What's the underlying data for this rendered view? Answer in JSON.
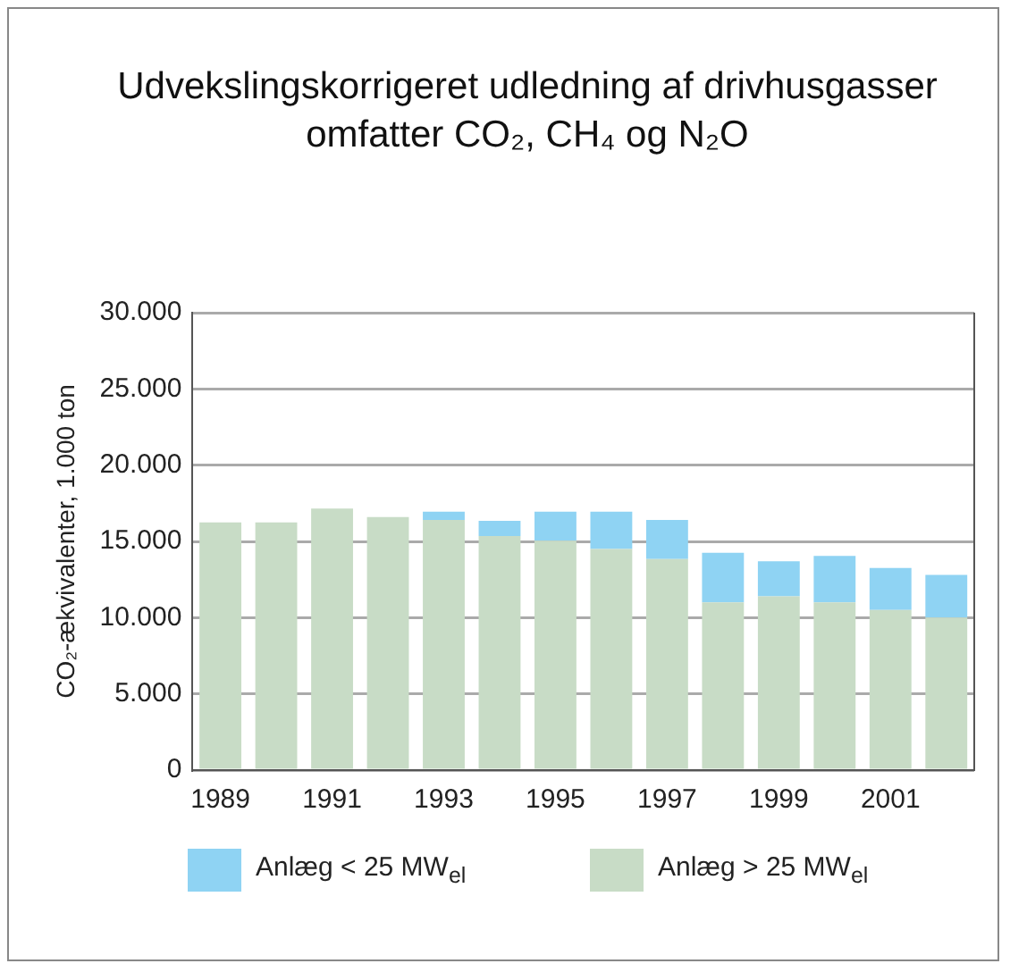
{
  "chart_data": {
    "type": "bar",
    "title": "Udvekslingskorrigeret udledning af drivhusgasser omfatter CO₂, CH₄ og N₂O",
    "ylabel": "CO₂-ækvivalenter, 1.000 ton",
    "categories": [
      "1989",
      null,
      "1991",
      null,
      "1993",
      null,
      "1995",
      null,
      "1997",
      null,
      "1999",
      null,
      "2001",
      null
    ],
    "stacked": true,
    "series": [
      {
        "name": "Anlæg > 25 MW$_{el}$",
        "color": "#c8dcc6",
        "values": [
          16250,
          16250,
          17150,
          16600,
          16400,
          15350,
          15050,
          14500,
          13850,
          11000,
          11400,
          11000,
          10500,
          10000
        ]
      },
      {
        "name": "Anlæg < 25 MW$_{el}$",
        "color": "#8fd3f3",
        "values": [
          null,
          null,
          null,
          null,
          550,
          1000,
          1900,
          2450,
          2550,
          3250,
          2300,
          3050,
          2750,
          2800
        ]
      }
    ],
    "ylim": [
      0,
      30000
    ],
    "yticks": [
      0,
      {
        "value": 5000,
        "label": "5.000"
      },
      {
        "value": 10000,
        "label": "10.000"
      },
      {
        "value": 15000,
        "label": "15.000"
      },
      {
        "value": 20000,
        "label": "20.000"
      },
      {
        "value": 25000,
        "label": "25.000"
      },
      {
        "value": 30000,
        "label": "30.000"
      }
    ],
    "grid": "y",
    "legend": "bottom"
  }
}
